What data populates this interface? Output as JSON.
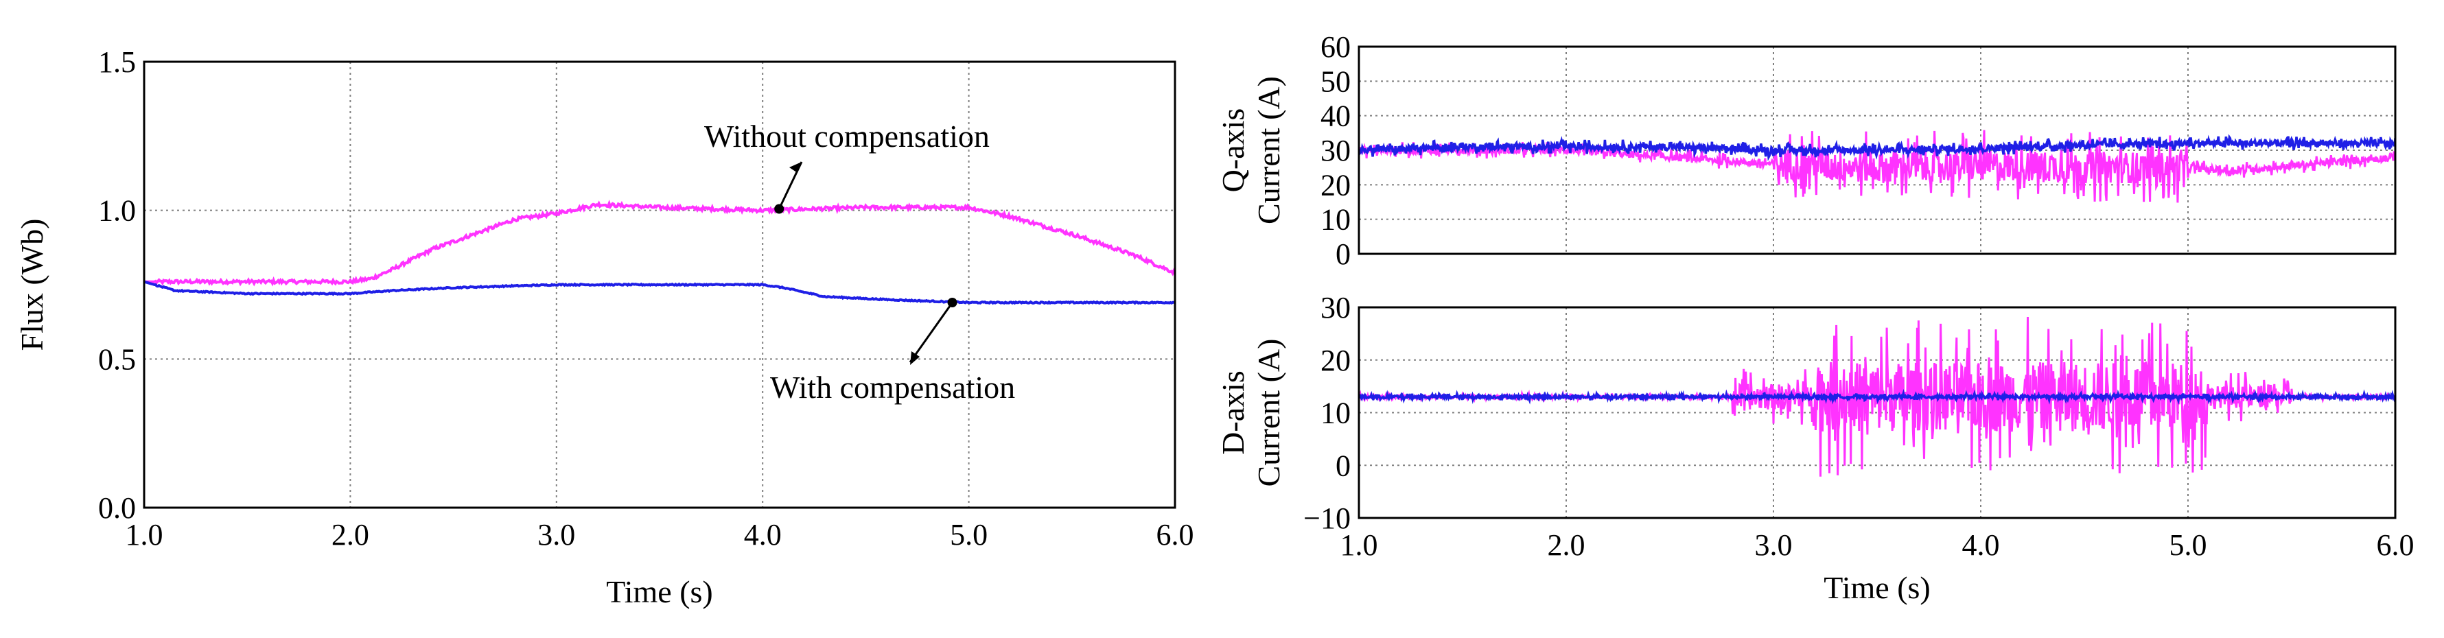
{
  "colors": {
    "without_compensation": "#ff33ff",
    "with_compensation": "#1f1fe6",
    "grid": "#808080",
    "frame": "#000000"
  },
  "chart_data": [
    {
      "type": "line",
      "ylabel": "Flux (Wb)",
      "xlabel": "Time (s)",
      "xlim": [
        1.0,
        6.0
      ],
      "ylim": [
        0.0,
        1.5
      ],
      "xticks": [
        "1.0",
        "2.0",
        "3.0",
        "4.0",
        "5.0",
        "6.0"
      ],
      "yticks": [
        "0.0",
        "0.5",
        "1.0",
        "1.5"
      ],
      "grid": true,
      "annotations": {
        "without": "Without compensation",
        "with": "With compensation"
      },
      "series": [
        {
          "name": "Without compensation",
          "color": "#ff33ff",
          "noise": 0.006,
          "x": [
            1.0,
            2.0,
            2.1,
            2.2,
            2.4,
            2.6,
            2.8,
            3.0,
            3.2,
            3.5,
            4.0,
            4.5,
            5.0,
            5.2,
            5.5,
            5.8,
            6.0
          ],
          "y": [
            0.76,
            0.76,
            0.77,
            0.8,
            0.87,
            0.92,
            0.97,
            0.99,
            1.02,
            1.01,
            1.0,
            1.01,
            1.01,
            0.98,
            0.92,
            0.85,
            0.79
          ]
        },
        {
          "name": "With compensation",
          "color": "#1f1fe6",
          "noise": 0.002,
          "x": [
            1.0,
            1.15,
            1.5,
            2.0,
            2.2,
            2.5,
            3.0,
            3.5,
            4.0,
            4.1,
            4.3,
            4.6,
            5.0,
            5.5,
            6.0
          ],
          "y": [
            0.76,
            0.73,
            0.72,
            0.72,
            0.73,
            0.74,
            0.75,
            0.75,
            0.75,
            0.74,
            0.71,
            0.7,
            0.69,
            0.69,
            0.69
          ]
        }
      ]
    },
    {
      "type": "line",
      "ylabel": [
        "Q-axis",
        "Current (A)"
      ],
      "xlabel": "",
      "xlim": [
        1.0,
        6.0
      ],
      "ylim": [
        0,
        60
      ],
      "yticks": [
        "0",
        "10",
        "20",
        "30",
        "40",
        "50",
        "60"
      ],
      "grid": true,
      "series": [
        {
          "color": "#ff33ff",
          "base_x": [
            1.0,
            2.0,
            2.5,
            3.0,
            3.5,
            4.0,
            4.5,
            5.0,
            5.2,
            5.5,
            6.0
          ],
          "base_y": [
            30,
            30,
            28,
            26,
            25,
            25.5,
            25,
            25,
            24,
            25.5,
            28
          ],
          "noise_profile": [
            {
              "from": 1.0,
              "to": 3.0,
              "amp": 1.5
            },
            {
              "from": 3.0,
              "to": 5.0,
              "amp": 6.5
            },
            {
              "from": 5.0,
              "to": 6.0,
              "amp": 1.5
            }
          ]
        },
        {
          "color": "#1f1fe6",
          "base_x": [
            1.0,
            1.5,
            2.0,
            2.5,
            3.0,
            3.5,
            4.0,
            4.5,
            5.0,
            5.5,
            6.0
          ],
          "base_y": [
            30,
            31,
            31,
            31,
            30,
            30,
            30.5,
            31.5,
            32,
            32,
            32
          ],
          "noise_profile": [
            {
              "from": 1.0,
              "to": 6.0,
              "amp": 1.3
            }
          ]
        }
      ]
    },
    {
      "type": "line",
      "ylabel": [
        "D-axis",
        "Current (A)"
      ],
      "xlabel": "Time (s)",
      "xlim": [
        1.0,
        6.0
      ],
      "ylim": [
        -10,
        30
      ],
      "xticks": [
        "1.0",
        "2.0",
        "3.0",
        "4.0",
        "5.0",
        "6.0"
      ],
      "yticks": [
        "−10",
        "0",
        "10",
        "20",
        "30"
      ],
      "grid": true,
      "series": [
        {
          "color": "#ff33ff",
          "base_x": [
            1.0,
            6.0
          ],
          "base_y": [
            13,
            13
          ],
          "noise_profile": [
            {
              "from": 1.0,
              "to": 2.8,
              "amp": 0.4
            },
            {
              "from": 2.8,
              "to": 3.2,
              "amp": 3.5
            },
            {
              "from": 3.2,
              "to": 5.1,
              "amp": 9.5
            },
            {
              "from": 5.1,
              "to": 5.5,
              "amp": 3.0
            },
            {
              "from": 5.5,
              "to": 6.0,
              "amp": 0.4
            }
          ]
        },
        {
          "color": "#1f1fe6",
          "base_x": [
            1.0,
            6.0
          ],
          "base_y": [
            13,
            13
          ],
          "noise_profile": [
            {
              "from": 1.0,
              "to": 6.0,
              "amp": 0.4
            }
          ]
        }
      ]
    }
  ]
}
